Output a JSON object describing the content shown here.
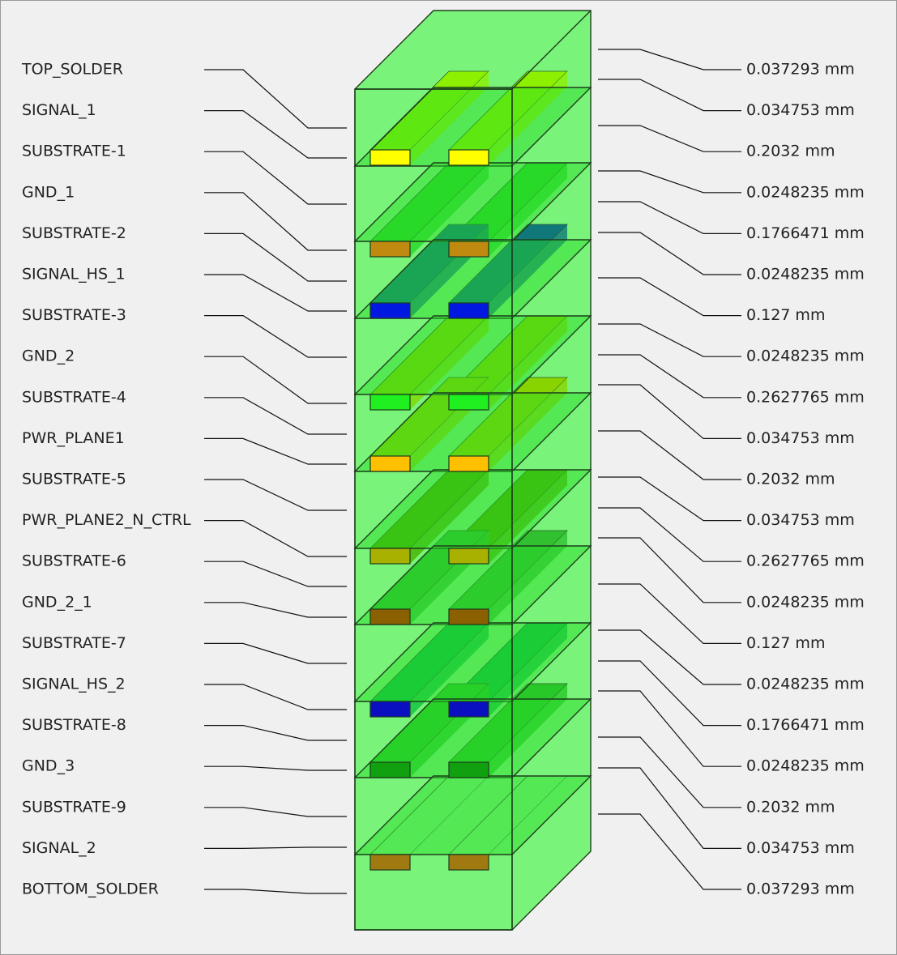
{
  "layers": [
    {
      "name": "TOP_SOLDER",
      "thickness": "0.037293 mm"
    },
    {
      "name": "SIGNAL_1",
      "thickness": "0.034753 mm"
    },
    {
      "name": "SUBSTRATE-1",
      "thickness": "0.2032 mm"
    },
    {
      "name": "GND_1",
      "thickness": "0.0248235 mm"
    },
    {
      "name": "SUBSTRATE-2",
      "thickness": "0.1766471 mm"
    },
    {
      "name": "SIGNAL_HS_1",
      "thickness": "0.0248235 mm"
    },
    {
      "name": "SUBSTRATE-3",
      "thickness": "0.127 mm"
    },
    {
      "name": "GND_2",
      "thickness": "0.0248235 mm"
    },
    {
      "name": "SUBSTRATE-4",
      "thickness": "0.2627765 mm"
    },
    {
      "name": "PWR_PLANE1",
      "thickness": "0.034753 mm"
    },
    {
      "name": "SUBSTRATE-5",
      "thickness": "0.2032 mm"
    },
    {
      "name": "PWR_PLANE2_N_CTRL",
      "thickness": "0.034753 mm"
    },
    {
      "name": "SUBSTRATE-6",
      "thickness": "0.2627765 mm"
    },
    {
      "name": "GND_2_1",
      "thickness": "0.0248235 mm"
    },
    {
      "name": "SUBSTRATE-7",
      "thickness": "0.127 mm"
    },
    {
      "name": "SIGNAL_HS_2",
      "thickness": "0.0248235 mm"
    },
    {
      "name": "SUBSTRATE-8",
      "thickness": "0.1766471 mm"
    },
    {
      "name": "GND_3",
      "thickness": "0.0248235 mm"
    },
    {
      "name": "SUBSTRATE-9",
      "thickness": "0.2032 mm"
    },
    {
      "name": "SIGNAL_2",
      "thickness": "0.034753 mm"
    },
    {
      "name": "BOTTOM_SOLDER",
      "thickness": "0.037293 mm"
    }
  ]
}
